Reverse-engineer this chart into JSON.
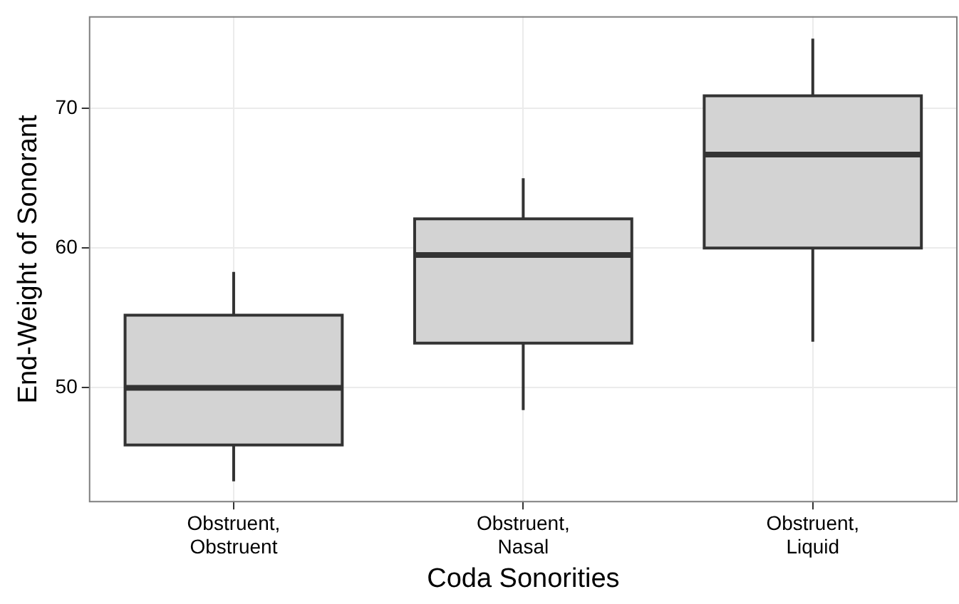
{
  "chart_data": {
    "type": "box",
    "xlabel": "Coda Sonorities",
    "ylabel": "End-Weight of Sonorant",
    "categories": [
      "Obstruent, Obstruent",
      "Obstruent, Nasal",
      "Obstruent, Liquid"
    ],
    "boxes": [
      {
        "low": 43.3,
        "q1": 45.9,
        "median": 50,
        "q3": 55.2,
        "high": 58.3
      },
      {
        "low": 48.4,
        "q1": 53.2,
        "median": 59.5,
        "q3": 62.1,
        "high": 65
      },
      {
        "low": 53.3,
        "q1": 60,
        "median": 66.7,
        "q3": 70.9,
        "high": 75
      }
    ],
    "color": "#d3d3d3",
    "ylim": [
      41.8,
      76.6
    ],
    "yticks": [
      50,
      60,
      70
    ],
    "grid": true,
    "legend": false
  }
}
